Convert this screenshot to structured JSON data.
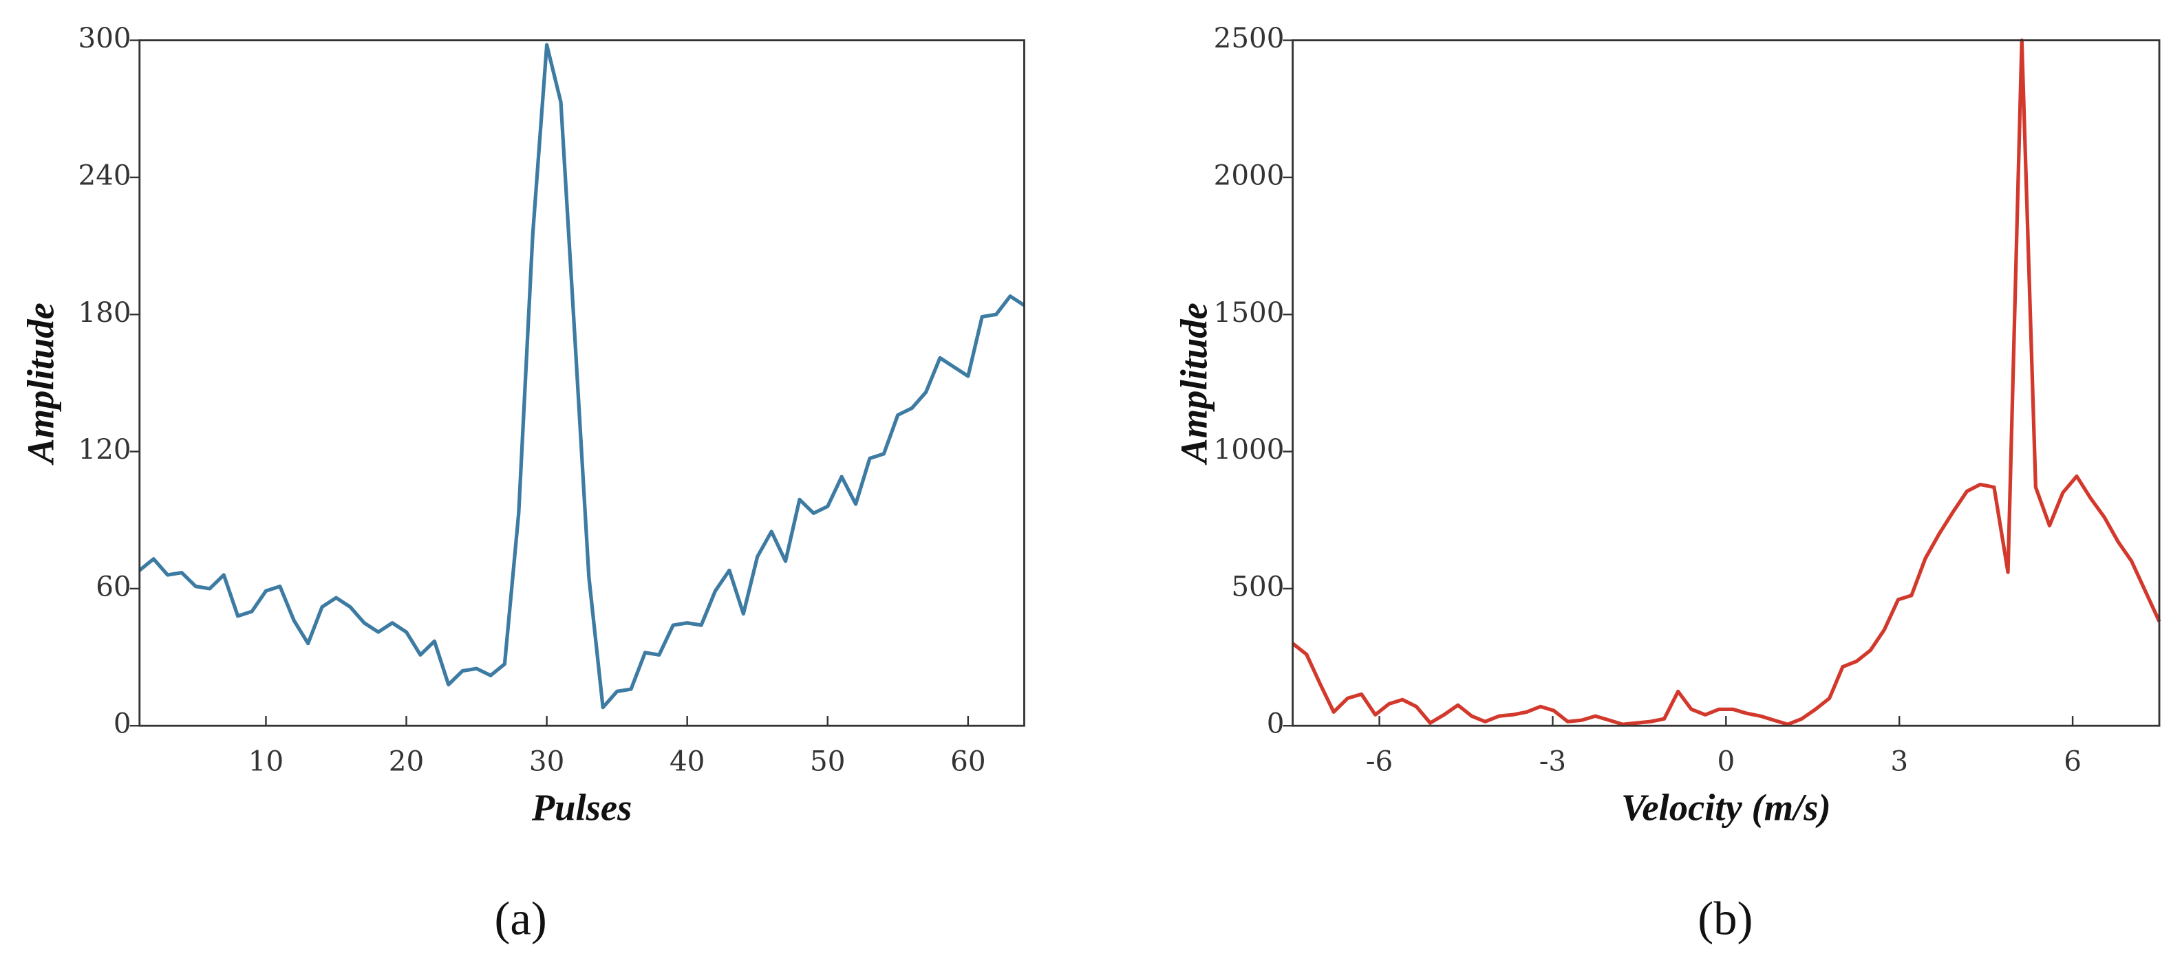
{
  "chart_data": [
    {
      "type": "line",
      "x_label": "Pulses",
      "y_label": "Amplitude",
      "panel_label": "(a)",
      "x": [
        1,
        2,
        3,
        4,
        5,
        6,
        7,
        8,
        9,
        10,
        11,
        12,
        13,
        14,
        15,
        16,
        17,
        18,
        19,
        20,
        21,
        22,
        23,
        24,
        25,
        26,
        27,
        28,
        29,
        30,
        31,
        32,
        33,
        34,
        35,
        36,
        37,
        38,
        39,
        40,
        41,
        42,
        43,
        44,
        45,
        46,
        47,
        48,
        49,
        50,
        51,
        52,
        53,
        54,
        55,
        56,
        57,
        58,
        59,
        60,
        61,
        62,
        63,
        64
      ],
      "series": [
        {
          "color": "#3d7ba3",
          "values": [
            68,
            73,
            66,
            67,
            61,
            60,
            66,
            48,
            50,
            59,
            61,
            46,
            36,
            52,
            56,
            52,
            45,
            41,
            45,
            41,
            31,
            37,
            18,
            24,
            25,
            22,
            27,
            93,
            215,
            298,
            273,
            170,
            65,
            8,
            15,
            16,
            32,
            31,
            44,
            45,
            44,
            59,
            68,
            49,
            74,
            85,
            72,
            99,
            93,
            96,
            109,
            97,
            117,
            119,
            136,
            139,
            146,
            161,
            157,
            153,
            179,
            180,
            188,
            184
          ]
        }
      ],
      "xlim": [
        1,
        64
      ],
      "xticks": [
        10,
        20,
        30,
        40,
        50,
        60
      ],
      "ylim": [
        0,
        300
      ],
      "yticks": [
        0,
        60,
        120,
        180,
        240,
        300
      ]
    },
    {
      "type": "line",
      "x_label": "Velocity",
      "x_unit": "(m/s)",
      "y_label": "Amplitude",
      "panel_label": "(b)",
      "x": [
        -7.5,
        -7.26,
        -7.02,
        -6.79,
        -6.55,
        -6.31,
        -6.07,
        -5.83,
        -5.6,
        -5.36,
        -5.12,
        -4.88,
        -4.64,
        -4.4,
        -4.17,
        -3.93,
        -3.69,
        -3.45,
        -3.21,
        -2.98,
        -2.74,
        -2.5,
        -2.26,
        -2.02,
        -1.79,
        -1.55,
        -1.31,
        -1.07,
        -0.83,
        -0.6,
        -0.36,
        -0.12,
        0.12,
        0.36,
        0.6,
        0.83,
        1.07,
        1.31,
        1.55,
        1.79,
        2.02,
        2.26,
        2.5,
        2.74,
        2.98,
        3.21,
        3.45,
        3.69,
        3.93,
        4.17,
        4.4,
        4.64,
        4.88,
        5.12,
        5.36,
        5.6,
        5.83,
        6.07,
        6.31,
        6.55,
        6.79,
        7.02,
        7.26,
        7.5
      ],
      "series": [
        {
          "color": "#d2392c",
          "values": [
            300,
            260,
            150,
            50,
            100,
            115,
            40,
            80,
            95,
            70,
            10,
            40,
            75,
            35,
            15,
            35,
            40,
            50,
            70,
            55,
            15,
            20,
            35,
            20,
            5,
            10,
            15,
            25,
            125,
            60,
            40,
            60,
            60,
            45,
            35,
            20,
            5,
            25,
            60,
            100,
            215,
            235,
            275,
            350,
            460,
            475,
            610,
            700,
            780,
            855,
            880,
            870,
            560,
            2500,
            870,
            730,
            850,
            910,
            830,
            760,
            670,
            600,
            490,
            380
          ]
        }
      ],
      "xlim": [
        -7.5,
        7.5
      ],
      "xticks": [
        -6,
        -3,
        0,
        3,
        6
      ],
      "ylim": [
        0,
        2500
      ],
      "yticks": [
        0,
        500,
        1000,
        1500,
        2000,
        2500
      ]
    }
  ]
}
